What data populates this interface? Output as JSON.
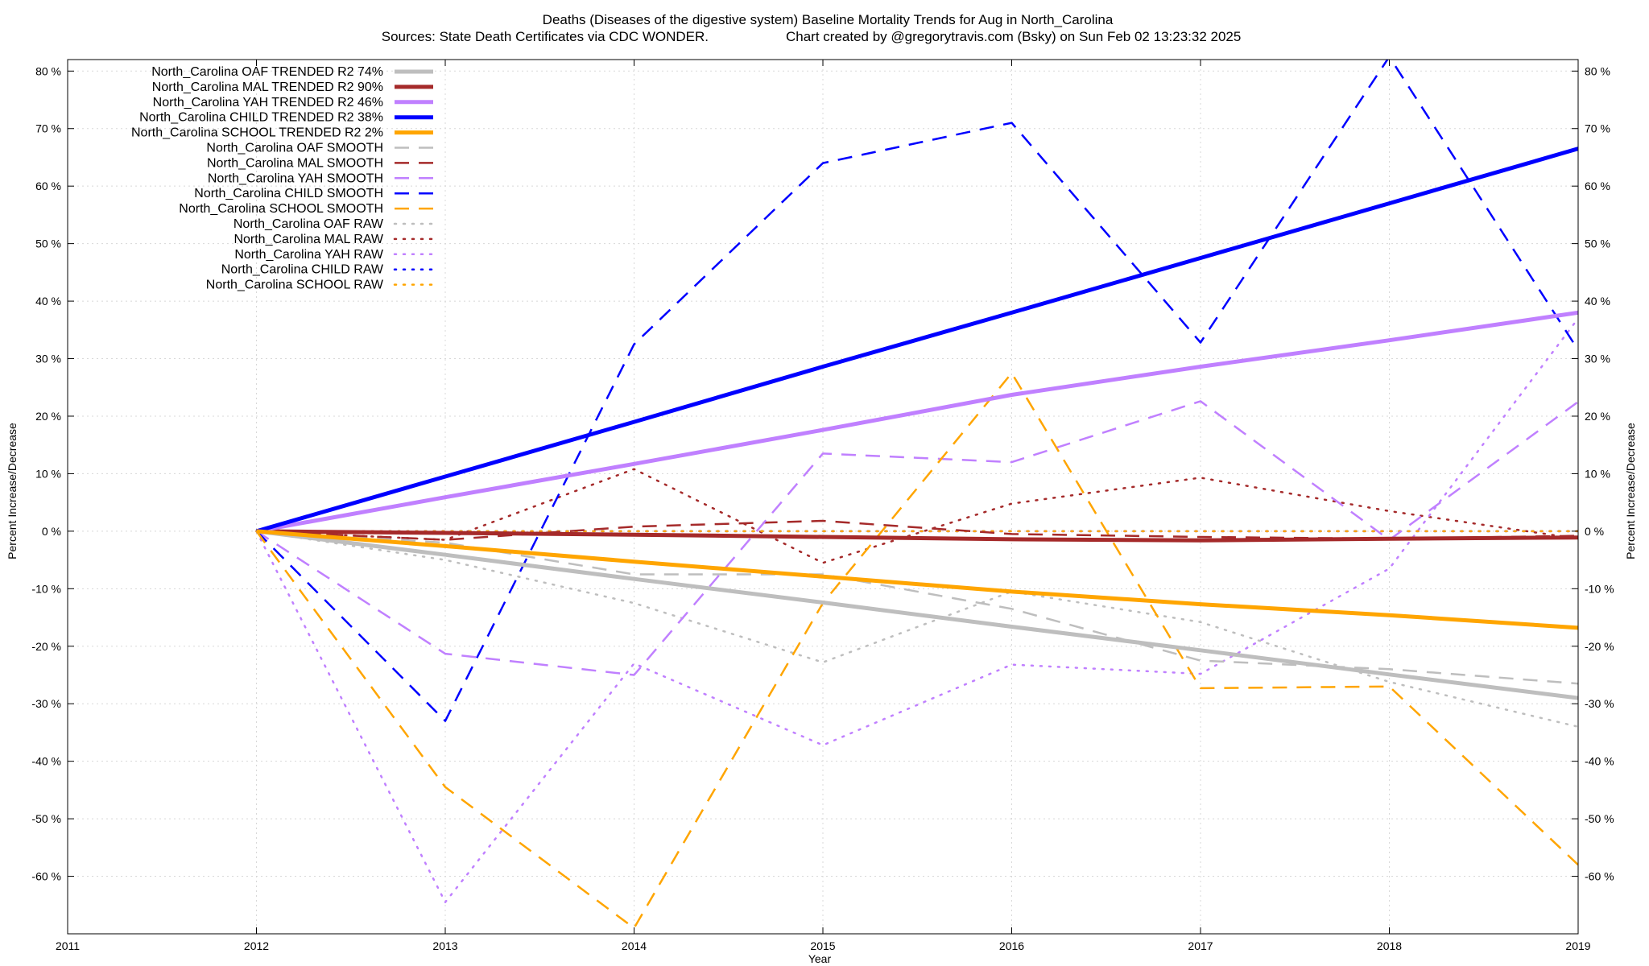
{
  "chart_data": {
    "type": "line",
    "title": "Deaths (Diseases of the digestive system)  Baseline Mortality Trends for Aug in North_Carolina",
    "subtitle_left": "Sources: State Death Certificates via CDC WONDER.",
    "subtitle_right": "Chart created by @gregorytravis.com (Bsky) on Sun Feb 02 13:23:32 2025",
    "xlabel": "Year",
    "ylabel_left": "Percent Increase/Decrease",
    "ylabel_right": "Percent Increase/Decrease",
    "xlim": [
      2011,
      2019
    ],
    "ylim": [
      -70,
      82
    ],
    "x_ticks": [
      2011,
      2012,
      2013,
      2014,
      2015,
      2016,
      2017,
      2018,
      2019
    ],
    "x_tick_labels": [
      "2011",
      "2012",
      "2013",
      "2014",
      "2015",
      "2016",
      "2017",
      "2018",
      "2019"
    ],
    "y_ticks": [
      80,
      70,
      60,
      50,
      40,
      30,
      20,
      10,
      0,
      -10,
      -20,
      -30,
      -40,
      -50,
      -60
    ],
    "y_tick_labels": [
      "80 %",
      "70 %",
      "60 %",
      "50 %",
      "40 %",
      "30 %",
      "20 %",
      "10 %",
      "0 %",
      "-10 %",
      "-20 %",
      "-30 %",
      "-40 %",
      "-50 %",
      "-60 %"
    ],
    "grid": true,
    "legend_position": "top-left",
    "x": [
      2012,
      2013,
      2014,
      2015,
      2016,
      2017,
      2018,
      2019
    ],
    "series": [
      {
        "name": "North_Carolina OAF TRENDED R2  74%",
        "color": "#bebebe",
        "style": "solid",
        "values": [
          0,
          -4.1,
          -8.3,
          -12.4,
          -16.6,
          -20.7,
          -24.9,
          -29
        ]
      },
      {
        "name": "North_Carolina MAL TRENDED R2  90%",
        "color": "#a52a2a",
        "style": "solid",
        "values": [
          0,
          -0.3,
          -0.6,
          -1.0,
          -1.4,
          -1.6,
          -1.3,
          -1.1
        ]
      },
      {
        "name": "North_Carolina YAH TRENDED R2  46%",
        "color": "#c080ff",
        "style": "solid",
        "values": [
          0,
          5.9,
          11.7,
          17.6,
          23.7,
          28.6,
          33.2,
          38
        ]
      },
      {
        "name": "North_Carolina CHILD TRENDED R2  38%",
        "color": "#0000ff",
        "style": "solid",
        "values": [
          0,
          9.5,
          19.0,
          28.6,
          38.0,
          47.5,
          57.0,
          66.5
        ]
      },
      {
        "name": "North_Carolina SCHOOL TRENDED R2   2%",
        "color": "#ffa500",
        "style": "solid",
        "values": [
          0,
          -2.6,
          -5.3,
          -7.9,
          -10.5,
          -12.7,
          -14.6,
          -16.8
        ]
      },
      {
        "name": "North_Carolina OAF SMOOTH",
        "color": "#bebebe",
        "style": "dashed",
        "values": [
          0,
          -2,
          -7.5,
          -7.5,
          -13.5,
          -22.5,
          -24,
          -26.5
        ]
      },
      {
        "name": "North_Carolina MAL SMOOTH",
        "color": "#a52a2a",
        "style": "dashed",
        "values": [
          0,
          -1.5,
          0.8,
          1.8,
          -0.5,
          -1.0,
          -1.3,
          -0.8
        ]
      },
      {
        "name": "North_Carolina YAH SMOOTH",
        "color": "#c080ff",
        "style": "dashed",
        "values": [
          0,
          -21.3,
          -25,
          13.5,
          12,
          22.6,
          -1.5,
          22.5
        ]
      },
      {
        "name": "North_Carolina CHILD SMOOTH",
        "color": "#0000ff",
        "style": "dashed",
        "values": [
          0,
          -33,
          32.5,
          64,
          71,
          32.8,
          82.5,
          31.5
        ]
      },
      {
        "name": "North_Carolina SCHOOL SMOOTH",
        "color": "#ffa500",
        "style": "dashed",
        "values": [
          0,
          -44.5,
          -69,
          -12.5,
          27.5,
          -27.3,
          -27,
          -58
        ]
      },
      {
        "name": "North_Carolina OAF RAW",
        "color": "#bebebe",
        "style": "dotted",
        "values": [
          0,
          -5,
          -12.5,
          -22.8,
          -10.5,
          -15.8,
          -26.2,
          -34
        ]
      },
      {
        "name": "North_Carolina MAL RAW",
        "color": "#a52a2a",
        "style": "dotted",
        "values": [
          0,
          -1.5,
          10.8,
          -5.5,
          4.8,
          9.3,
          3.5,
          -1.3
        ]
      },
      {
        "name": "North_Carolina YAH RAW",
        "color": "#c080ff",
        "style": "dotted",
        "values": [
          0,
          -64.5,
          -23,
          -37.2,
          -23.2,
          -24.8,
          -6.5,
          37
        ]
      },
      {
        "name": "North_Carolina CHILD RAW",
        "color": "#0000ff",
        "style": "dotted",
        "values": [
          0,
          0,
          0,
          0,
          0,
          0,
          0,
          0
        ]
      },
      {
        "name": "North_Carolina SCHOOL RAW",
        "color": "#ffa500",
        "style": "dotted",
        "values": [
          0,
          0,
          0,
          0,
          0,
          0,
          0,
          0
        ]
      }
    ]
  }
}
